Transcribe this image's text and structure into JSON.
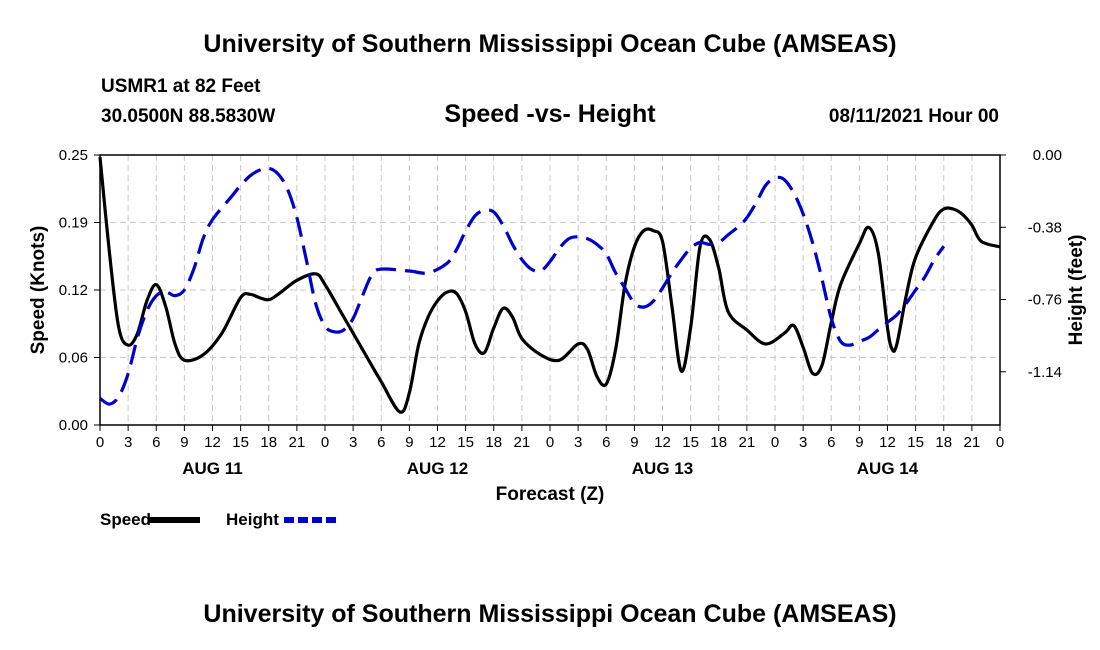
{
  "header": {
    "title": "University of Southern Mississippi Ocean Cube (AMSEAS)",
    "station": "USMR1 at 82 Feet",
    "coords": "30.0500N  88.5830W",
    "subtitle": "Speed -vs- Height",
    "datetime": "08/11/2021 Hour 00"
  },
  "footer": {
    "title": "University of Southern Mississippi Ocean Cube (AMSEAS)"
  },
  "chart_data": {
    "type": "line",
    "title": "Speed -vs- Height",
    "xlabel": "Forecast (Z)",
    "ylabel_left": "Speed (Knots)",
    "ylabel_right": "Height (feet)",
    "x_range_hours": [
      0,
      96
    ],
    "x_tick_step_hours": 3,
    "x_tick_labels": [
      "0",
      "3",
      "6",
      "9",
      "12",
      "15",
      "18",
      "21",
      "0",
      "3",
      "6",
      "9",
      "12",
      "15",
      "18",
      "21",
      "0",
      "3",
      "6",
      "9",
      "12",
      "15",
      "18",
      "21",
      "0",
      "3",
      "6",
      "9",
      "12",
      "15",
      "18",
      "21",
      "0"
    ],
    "day_labels": [
      {
        "label": "AUG 11",
        "hour": 12
      },
      {
        "label": "AUG 12",
        "hour": 36
      },
      {
        "label": "AUG 13",
        "hour": 60
      },
      {
        "label": "AUG 14",
        "hour": 84
      }
    ],
    "y_left": {
      "range": [
        0,
        0.25
      ],
      "ticks": [
        "0.00",
        "0.06",
        "0.12",
        "0.19",
        "0.25"
      ]
    },
    "y_right": {
      "range": [
        -1.42,
        0.0
      ],
      "ticks": [
        "0.00",
        "-0.38",
        "-0.76",
        "-1.14"
      ],
      "tick_values": [
        0.0,
        -0.38,
        -0.76,
        -1.14
      ]
    },
    "grid": true,
    "series": [
      {
        "name": "Speed",
        "axis": "left",
        "color": "#000000",
        "style": "solid",
        "points": [
          [
            0,
            0.248
          ],
          [
            1,
            0.16
          ],
          [
            2,
            0.09
          ],
          [
            3,
            0.074
          ],
          [
            4,
            0.085
          ],
          [
            5,
            0.115
          ],
          [
            6,
            0.13
          ],
          [
            7,
            0.11
          ],
          [
            8,
            0.075
          ],
          [
            9,
            0.06
          ],
          [
            11,
            0.065
          ],
          [
            13,
            0.085
          ],
          [
            15,
            0.118
          ],
          [
            16,
            0.121
          ],
          [
            17,
            0.118
          ],
          [
            18,
            0.116
          ],
          [
            19,
            0.121
          ],
          [
            21,
            0.134
          ],
          [
            23,
            0.14
          ],
          [
            24,
            0.13
          ],
          [
            26,
            0.1
          ],
          [
            28,
            0.07
          ],
          [
            30,
            0.04
          ],
          [
            32,
            0.012
          ],
          [
            33,
            0.03
          ],
          [
            34,
            0.075
          ],
          [
            35,
            0.1
          ],
          [
            36,
            0.115
          ],
          [
            37,
            0.123
          ],
          [
            38,
            0.122
          ],
          [
            39,
            0.105
          ],
          [
            40,
            0.075
          ],
          [
            41,
            0.067
          ],
          [
            42,
            0.09
          ],
          [
            43,
            0.108
          ],
          [
            44,
            0.1
          ],
          [
            45,
            0.08
          ],
          [
            47,
            0.065
          ],
          [
            49,
            0.06
          ],
          [
            51,
            0.075
          ],
          [
            52,
            0.07
          ],
          [
            53,
            0.045
          ],
          [
            54,
            0.038
          ],
          [
            55,
            0.07
          ],
          [
            56,
            0.13
          ],
          [
            57,
            0.165
          ],
          [
            58,
            0.18
          ],
          [
            59,
            0.18
          ],
          [
            60,
            0.17
          ],
          [
            61,
            0.11
          ],
          [
            62,
            0.05
          ],
          [
            63,
            0.09
          ],
          [
            64,
            0.165
          ],
          [
            65,
            0.172
          ],
          [
            66,
            0.145
          ],
          [
            67,
            0.105
          ],
          [
            69,
            0.088
          ],
          [
            71,
            0.075
          ],
          [
            73,
            0.085
          ],
          [
            74,
            0.092
          ],
          [
            75,
            0.072
          ],
          [
            76,
            0.048
          ],
          [
            77,
            0.055
          ],
          [
            78,
            0.095
          ],
          [
            79,
            0.13
          ],
          [
            81,
            0.168
          ],
          [
            82,
            0.183
          ],
          [
            83,
            0.16
          ],
          [
            84,
            0.09
          ],
          [
            84.5,
            0.07
          ],
          [
            85,
            0.075
          ],
          [
            86,
            0.12
          ],
          [
            87,
            0.155
          ],
          [
            89,
            0.19
          ],
          [
            90,
            0.2
          ],
          [
            91,
            0.2
          ],
          [
            92,
            0.195
          ],
          [
            93,
            0.185
          ],
          [
            94,
            0.17
          ],
          [
            96,
            0.165
          ]
        ]
      },
      {
        "name": "Height",
        "axis": "right",
        "color": "#0000cc",
        "style": "dashed",
        "points": [
          [
            0,
            -1.28
          ],
          [
            1,
            -1.31
          ],
          [
            2,
            -1.27
          ],
          [
            3,
            -1.15
          ],
          [
            4,
            -0.96
          ],
          [
            5,
            -0.82
          ],
          [
            6,
            -0.74
          ],
          [
            7,
            -0.72
          ],
          [
            8,
            -0.74
          ],
          [
            9,
            -0.71
          ],
          [
            10,
            -0.6
          ],
          [
            11,
            -0.44
          ],
          [
            12,
            -0.34
          ],
          [
            14,
            -0.22
          ],
          [
            15,
            -0.16
          ],
          [
            16,
            -0.11
          ],
          [
            17,
            -0.08
          ],
          [
            18,
            -0.07
          ],
          [
            19,
            -0.1
          ],
          [
            20,
            -0.18
          ],
          [
            21,
            -0.33
          ],
          [
            22,
            -0.55
          ],
          [
            23,
            -0.78
          ],
          [
            24,
            -0.9
          ],
          [
            25,
            -0.93
          ],
          [
            26,
            -0.92
          ],
          [
            27,
            -0.86
          ],
          [
            28,
            -0.74
          ],
          [
            29,
            -0.63
          ],
          [
            30,
            -0.6
          ],
          [
            33,
            -0.61
          ],
          [
            35,
            -0.62
          ],
          [
            37,
            -0.57
          ],
          [
            38,
            -0.5
          ],
          [
            39,
            -0.4
          ],
          [
            40,
            -0.32
          ],
          [
            41,
            -0.29
          ],
          [
            42,
            -0.3
          ],
          [
            43,
            -0.37
          ],
          [
            44,
            -0.47
          ],
          [
            45,
            -0.55
          ],
          [
            46,
            -0.6
          ],
          [
            47,
            -0.61
          ],
          [
            48,
            -0.56
          ],
          [
            49,
            -0.49
          ],
          [
            50,
            -0.44
          ],
          [
            51,
            -0.43
          ],
          [
            52,
            -0.44
          ],
          [
            53,
            -0.47
          ],
          [
            54,
            -0.52
          ],
          [
            55,
            -0.62
          ],
          [
            56,
            -0.7
          ],
          [
            57,
            -0.78
          ],
          [
            58,
            -0.8
          ],
          [
            59,
            -0.77
          ],
          [
            60,
            -0.7
          ],
          [
            61,
            -0.62
          ],
          [
            62,
            -0.55
          ],
          [
            63,
            -0.49
          ],
          [
            64,
            -0.46
          ],
          [
            65,
            -0.47
          ],
          [
            66,
            -0.46
          ],
          [
            67,
            -0.42
          ],
          [
            68,
            -0.38
          ],
          [
            69,
            -0.33
          ],
          [
            70,
            -0.25
          ],
          [
            71,
            -0.16
          ],
          [
            72,
            -0.12
          ],
          [
            73,
            -0.13
          ],
          [
            74,
            -0.2
          ],
          [
            75,
            -0.31
          ],
          [
            76,
            -0.46
          ],
          [
            77,
            -0.65
          ],
          [
            78,
            -0.86
          ],
          [
            79,
            -0.98
          ],
          [
            80,
            -1.0
          ],
          [
            81,
            -0.98
          ],
          [
            82,
            -0.96
          ],
          [
            83,
            -0.92
          ],
          [
            84,
            -0.88
          ],
          [
            85,
            -0.84
          ],
          [
            86,
            -0.78
          ],
          [
            87,
            -0.71
          ],
          [
            88,
            -0.64
          ],
          [
            89,
            -0.55
          ],
          [
            90,
            -0.48
          ]
        ]
      }
    ],
    "legend": {
      "placement": "bottom-left",
      "items": [
        "Speed",
        "Height"
      ]
    }
  }
}
